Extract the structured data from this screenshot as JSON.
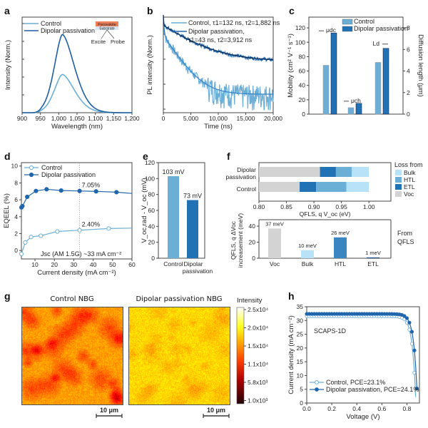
{
  "panel_labels": [
    "a",
    "b",
    "c",
    "d",
    "e",
    "f",
    "g",
    "h"
  ],
  "chart_data": [
    {
      "panel": "a",
      "type": "line",
      "title": "",
      "xlabel": "Wavelength (nm)",
      "ylabel": "Intensity (Norm.)",
      "xlim": [
        900,
        1200
      ],
      "xticks": [
        "900",
        "950",
        "1,000",
        "1,050",
        "1,100",
        "1,150",
        "1,200"
      ],
      "xtick_values": [
        900,
        950,
        1000,
        1050,
        1100,
        1150,
        1200
      ],
      "ylim": [
        0,
        1.1
      ],
      "grid": false,
      "legend_position": "top-left",
      "inset": {
        "top_layer": "Perovskite",
        "bottom_layer": "Substrate",
        "left_label": "Excite",
        "right_label": "Probe"
      },
      "series": [
        {
          "name": "Control",
          "color": "#6baed6",
          "peak_x": 1010,
          "peak_y": 0.44,
          "onset_x": 928
        },
        {
          "name": "Dipolar passivation",
          "color": "#1f5fa0",
          "peak_x": 1010,
          "peak_y": 0.9,
          "onset_x": 928
        }
      ]
    },
    {
      "panel": "b",
      "type": "line",
      "xlabel": "Time (ns)",
      "ylabel": "PL intensity (Norm.)",
      "yscale": "log",
      "xlim": [
        0,
        20000
      ],
      "xticks": [
        "0",
        "5,000",
        "10,000",
        "15,000",
        "20,000"
      ],
      "xtick_values": [
        0,
        5000,
        10000,
        15000,
        20000
      ],
      "legend_position": "top-right",
      "series": [
        {
          "name": "Control",
          "legend": "Control, τ1=132 ns, τ2=1,882 ns",
          "tau1_ns": 132,
          "tau2_ns": 1882,
          "color": "#6baed6",
          "fit_color": "#3a86c8"
        },
        {
          "name": "Dipolar passivation",
          "legend_line1": "Dipolar passivation,",
          "legend_line2": "τ1=43 ns, τ2=3,912 ns",
          "tau1_ns": 43,
          "tau2_ns": 3912,
          "color": "#2166ac",
          "fit_color": "#0b2e5a"
        }
      ]
    },
    {
      "panel": "c",
      "type": "bar",
      "ylabel": "Mobility (cm² V⁻¹ s⁻¹)",
      "y2label": "Diffusion length (μm)",
      "ylim": [
        0,
        135
      ],
      "yticks": [
        0,
        20,
        40,
        60,
        80,
        100,
        120
      ],
      "y2lim": [
        0,
        9
      ],
      "y2ticks": [
        0,
        2,
        4,
        6,
        8
      ],
      "legend_position": "top-center",
      "groups": [
        {
          "label": "μdc",
          "axis": "left",
          "arrow": "left",
          "control": 68,
          "dipolar": 113
        },
        {
          "label": "μch",
          "axis": "left",
          "arrow": "left",
          "control": 9,
          "dipolar": 15
        },
        {
          "label": "Ld",
          "axis": "right",
          "arrow": "right",
          "control": 4.8,
          "dipolar": 6.1
        }
      ],
      "series": [
        {
          "name": "Control",
          "color": "#6baed6"
        },
        {
          "name": "Dipolar passivation",
          "color": "#2171b5"
        }
      ]
    },
    {
      "panel": "d",
      "type": "line",
      "xlabel": "Current density (mA cm⁻²)",
      "ylabel": "EQE_EL (%)",
      "xlim": [
        3,
        60
      ],
      "xticks": [
        10,
        20,
        30,
        40,
        50,
        60
      ],
      "ylim": [
        -1,
        10.4
      ],
      "yticks": [
        0,
        2,
        4,
        6,
        8,
        10
      ],
      "legend_position": "top-left",
      "vline_x": 33,
      "annotations": [
        "7.05%",
        "2.40%",
        "Jsc (AM 1.5G) ~33 mA cm⁻²"
      ],
      "series": [
        {
          "name": "Control",
          "marker": "open-circle",
          "color": "#6baed6",
          "x": [
            3,
            5,
            8,
            13,
            21.5,
            33,
            48,
            60
          ],
          "y": [
            -0.4,
            0.95,
            1.6,
            1.75,
            2.25,
            2.4,
            2.6,
            2.65
          ]
        },
        {
          "name": "Dipolar passivation",
          "marker": "filled-circle",
          "color": "#2166ac",
          "x": [
            3,
            3.5,
            6,
            10.5,
            16,
            23.5,
            33,
            41.5,
            52,
            60
          ],
          "y": [
            5.1,
            5.25,
            6.35,
            7.05,
            7.25,
            7.1,
            7.05,
            7.0,
            6.9,
            6.75
          ]
        }
      ]
    },
    {
      "panel": "e",
      "type": "bar",
      "ylabel": "V_oc,rad - V_oc (mV)",
      "ylim": [
        0,
        120
      ],
      "yticks": [
        0,
        20,
        40,
        60,
        80,
        100,
        120
      ],
      "categories": [
        "Control",
        "Dipolar passivation"
      ],
      "values": [
        103,
        73
      ],
      "data_labels": [
        "103 mV",
        "73 mV"
      ],
      "colors": [
        "#6baed6",
        "#2171b5"
      ]
    },
    {
      "panel": "f-top",
      "type": "bar",
      "orientation": "horizontal-stacked",
      "xlabel": "QFLS, q V_oc (eV)",
      "xlim": [
        0.8,
        1.04
      ],
      "xticks": [
        "0.80",
        "0.85",
        "0.90",
        "0.95",
        "1.00"
      ],
      "xtick_values": [
        0.8,
        0.85,
        0.9,
        0.95,
        1.0
      ],
      "legend_title": "Loss from",
      "legend": [
        {
          "name": "Bulk",
          "color": "#b8e2f8"
        },
        {
          "name": "HTL",
          "color": "#6baed6"
        },
        {
          "name": "ETL",
          "color": "#2171b5"
        },
        {
          "name": "Voc",
          "color": "#d3d3d3"
        }
      ],
      "categories": [
        "Dipolar passivation",
        "Control"
      ],
      "segments": [
        {
          "category": "Dipolar passivation",
          "Voc": 0.911,
          "ETL": 0.029,
          "HTL": 0.029,
          "Bulk": 0.031
        },
        {
          "category": "Control",
          "Voc": 0.874,
          "ETL": 0.03,
          "HTL": 0.055,
          "Bulk": 0.041
        }
      ]
    },
    {
      "panel": "f-bottom",
      "type": "bar",
      "ylabel": "QFLS, q ΔVoc increasement (meV)",
      "ylim": [
        0,
        48
      ],
      "yticks": [
        0,
        20,
        40
      ],
      "side_label": "From QFLS",
      "categories": [
        "Voc",
        "Bulk",
        "HTL",
        "ETL"
      ],
      "values": [
        37,
        10,
        26,
        1
      ],
      "data_labels": [
        "37 meV",
        "10 meV",
        "26 meV",
        "1 meV"
      ],
      "colors": [
        "#d3d3d3",
        "#b8e2f8",
        "#3a86c0",
        "#1f4e8c"
      ]
    },
    {
      "panel": "g",
      "type": "heatmap",
      "titles": [
        "Control NBG",
        "Dipolar passivation NBG"
      ],
      "scale_bar": "10 μm",
      "colorbar_title": "Intensity",
      "colorbar_ticks": [
        "2.5x10⁴",
        "2.0x10⁴",
        "1.5x10⁴",
        "1.1x10⁴",
        "5.8x10³",
        "1.0x10³"
      ],
      "colormap": "hot",
      "mean_level": {
        "control": 0.55,
        "dipolar": 0.72
      }
    },
    {
      "panel": "h",
      "type": "line",
      "xlabel": "Voltage (V)",
      "ylabel": "Current density (mA cm⁻²)",
      "xlim": [
        0,
        0.9
      ],
      "xticks": [
        "0.0",
        "0.2",
        "0.4",
        "0.6",
        "0.8"
      ],
      "xtick_values": [
        0,
        0.2,
        0.4,
        0.6,
        0.8
      ],
      "ylim": [
        0,
        35
      ],
      "yticks": [
        0,
        5,
        10,
        15,
        20,
        25,
        30,
        35
      ],
      "annotation": "SCAPS-1D",
      "legend_position": "bottom-left",
      "series": [
        {
          "name": "Control, PCE=23.1%",
          "marker": "open-circle",
          "color": "#6baed6",
          "jsc": 31.6,
          "voc": 0.872
        },
        {
          "name": "Dipolar passivation, PCE=24.1%",
          "marker": "filled-circle",
          "color": "#2166ac",
          "jsc": 32.4,
          "voc": 0.885
        }
      ]
    }
  ]
}
